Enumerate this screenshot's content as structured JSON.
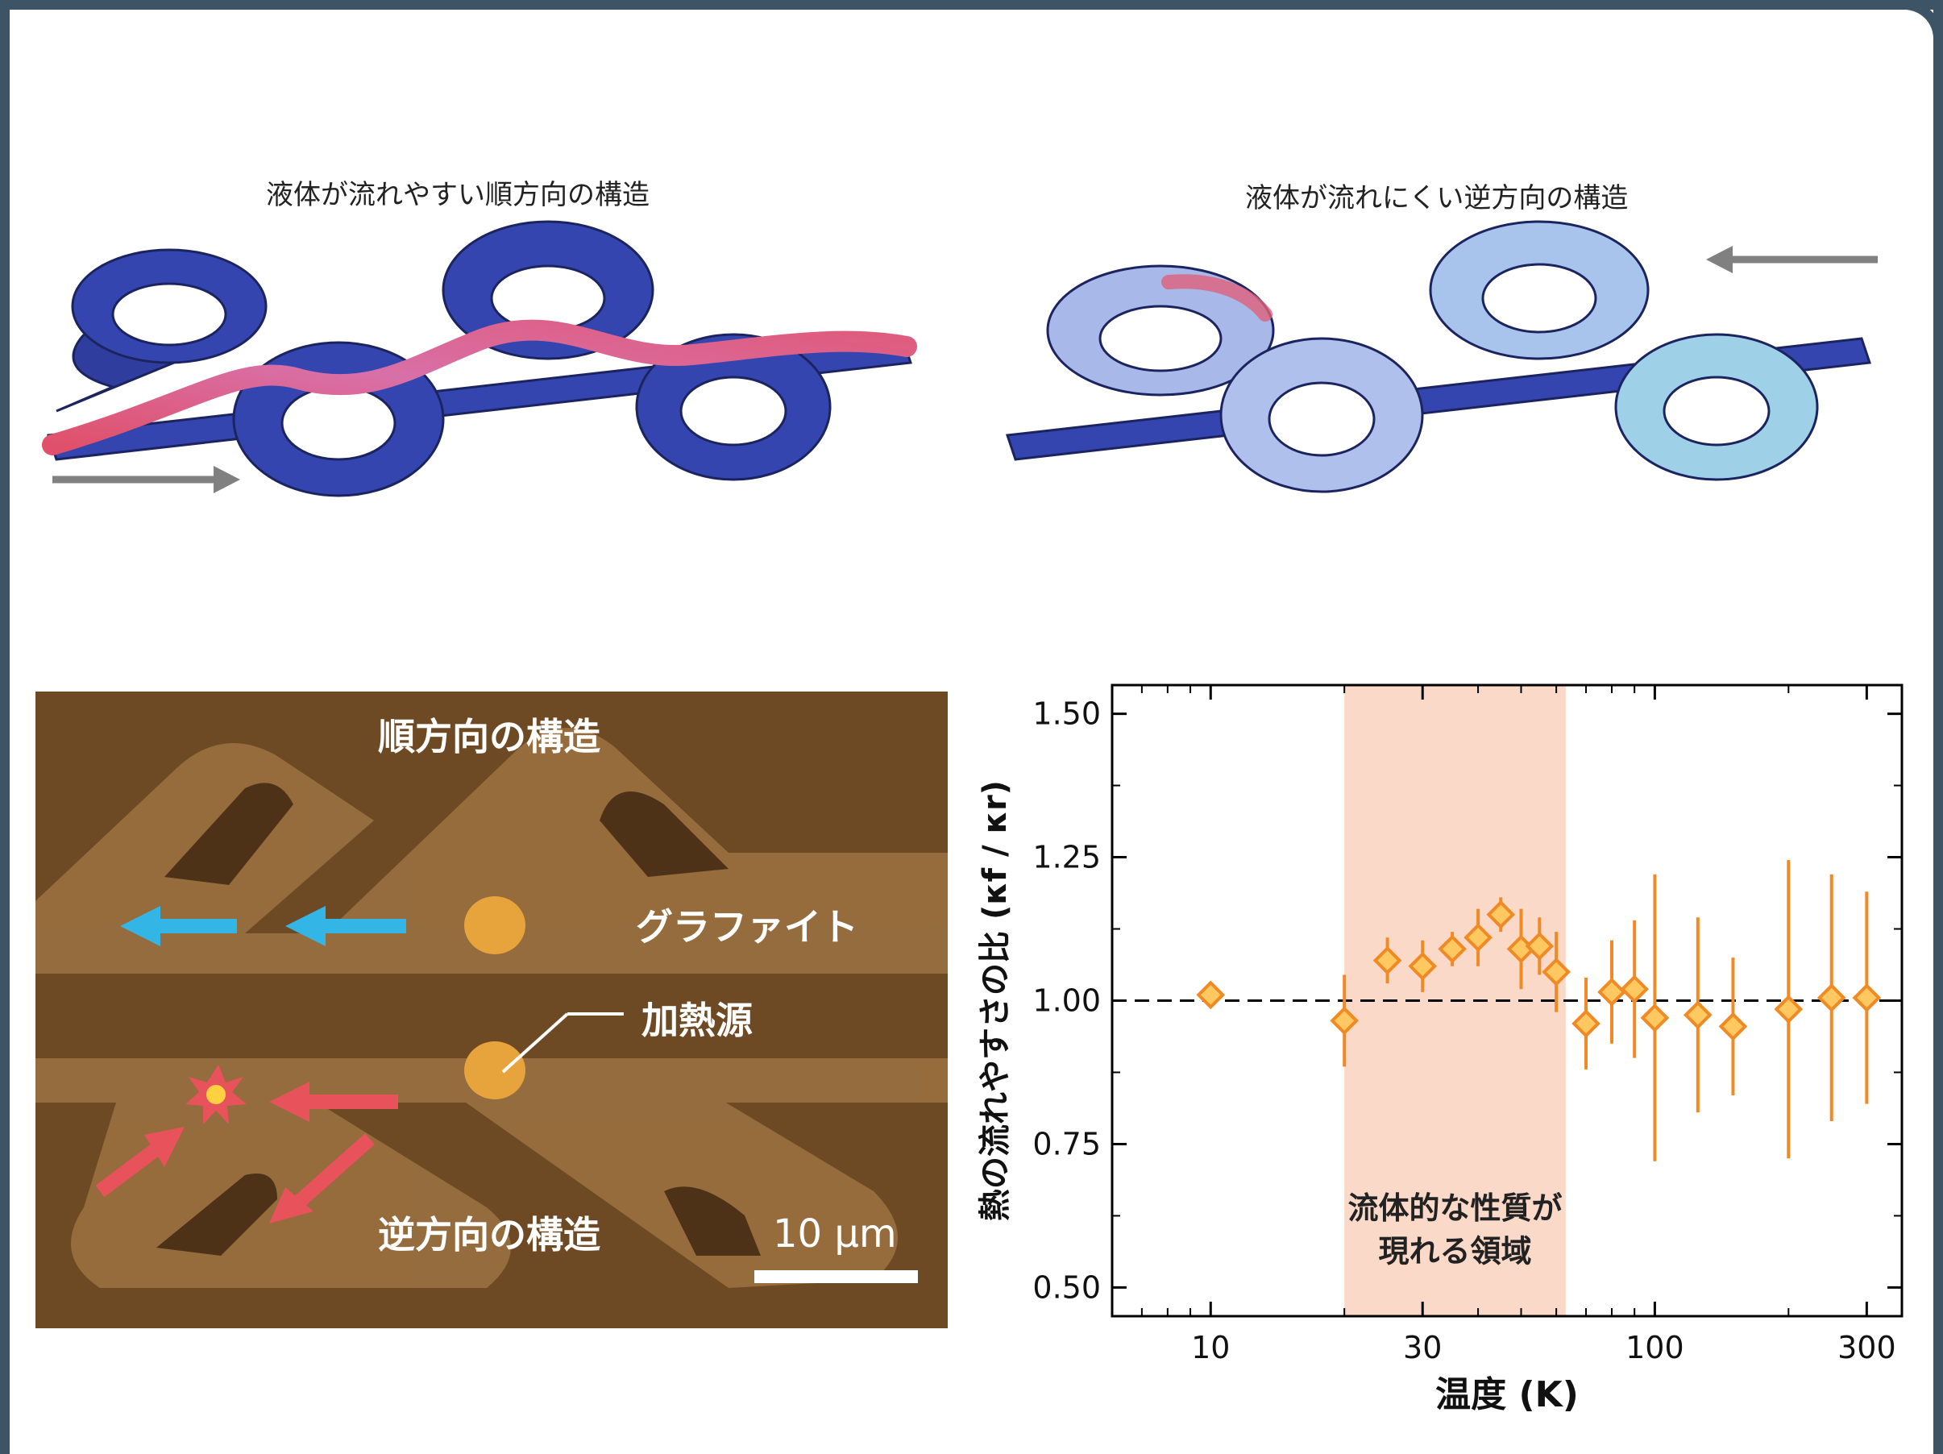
{
  "panels": {
    "forward_title": "液体が流れやすい順方向の構造",
    "reverse_title": "液体が流れにくい逆方向の構造"
  },
  "micrograph": {
    "label_forward": "順方向の構造",
    "label_graphite": "グラファイト",
    "label_heater": "加熱源",
    "label_reverse": "逆方向の構造",
    "scale_bar": "10 μm",
    "colors": {
      "blue_arrow": "#33b6e6",
      "red_arrow": "#e8525a",
      "pad": "#e8a43c"
    }
  },
  "colors": {
    "accent": "#f08a24",
    "region": "#fbd9c9",
    "frame": "#3d5366",
    "arrow_gray": "#808080"
  },
  "chart_data": {
    "type": "scatter",
    "xscale": "log",
    "xlim": [
      6,
      360
    ],
    "ylim": [
      0.45,
      1.55
    ],
    "xticks": [
      10,
      30,
      100,
      300
    ],
    "xtick_labels": [
      "10",
      "30",
      "100",
      "300"
    ],
    "yticks": [
      0.5,
      0.75,
      1.0,
      1.25,
      1.5
    ],
    "ytick_labels": [
      "0.50",
      "0.75",
      "1.00",
      "1.25",
      "1.50"
    ],
    "xlabel": "温度 (K)",
    "ylabel": "熱の流れやすさの比 (κf / κr)",
    "reference_line": 1.0,
    "shaded_region": {
      "x": [
        20,
        63
      ],
      "label_line1": "流体的な性質が",
      "label_line2": "現れる領域"
    },
    "points": [
      {
        "x": 10,
        "y": 1.01,
        "err": 0.02
      },
      {
        "x": 20,
        "y": 0.965,
        "err": 0.08
      },
      {
        "x": 25,
        "y": 1.07,
        "err": 0.04
      },
      {
        "x": 30,
        "y": 1.06,
        "err": 0.045
      },
      {
        "x": 35,
        "y": 1.09,
        "err": 0.03
      },
      {
        "x": 40,
        "y": 1.11,
        "err": 0.05
      },
      {
        "x": 45,
        "y": 1.15,
        "err": 0.03
      },
      {
        "x": 50,
        "y": 1.09,
        "err": 0.07
      },
      {
        "x": 55,
        "y": 1.095,
        "err": 0.05
      },
      {
        "x": 60,
        "y": 1.05,
        "err": 0.07
      },
      {
        "x": 70,
        "y": 0.96,
        "err": 0.08
      },
      {
        "x": 80,
        "y": 1.015,
        "err": 0.09
      },
      {
        "x": 90,
        "y": 1.02,
        "err": 0.12
      },
      {
        "x": 100,
        "y": 0.97,
        "err": 0.25
      },
      {
        "x": 125,
        "y": 0.975,
        "err": 0.17
      },
      {
        "x": 150,
        "y": 0.955,
        "err": 0.12
      },
      {
        "x": 200,
        "y": 0.985,
        "err": 0.26
      },
      {
        "x": 250,
        "y": 1.005,
        "err": 0.215
      },
      {
        "x": 300,
        "y": 1.005,
        "err": 0.185
      }
    ]
  }
}
